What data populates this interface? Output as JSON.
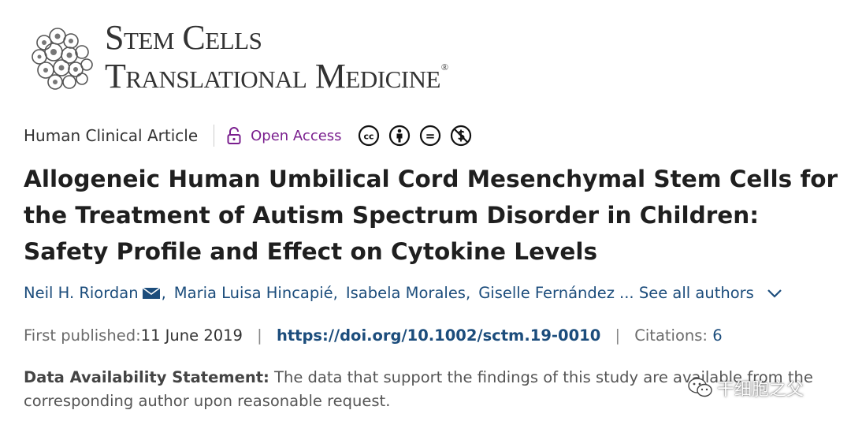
{
  "journal": {
    "name_line1": "Stem Cells",
    "name_line2": "Translational Medicine",
    "trademark": "®"
  },
  "article": {
    "type": "Human Clinical Article",
    "access": "Open Access",
    "license_icons": [
      "cc-icon",
      "attribution-icon",
      "no-derivatives-icon",
      "non-commercial-icon"
    ],
    "license_glyphs": {
      "cc": "cc",
      "nd": "="
    },
    "title": "Allogeneic Human Umbilical Cord Mesenchymal Stem Cells for the Treatment of Autism Spectrum Disorder in Children: Safety Profile and Effect on Cytokine Levels",
    "authors": {
      "author1": "Neil H. Riordan",
      "author2": "Maria Luisa Hincapié",
      "author3": "Isabela Morales",
      "author4": "Giselle Fernández",
      "separator": ",",
      "ellipsis": "...",
      "see_all": "See all authors"
    },
    "first_published_label": "First published:",
    "first_published_date": "11 June 2019",
    "pipe": "|",
    "doi": "https://doi.org/10.1002/sctm.19-0010",
    "citations_label": "Citations: ",
    "citations_value": "6",
    "data_availability_label": "Data Availability Statement:",
    "data_availability_text": " The data that support the findings of this study are available from the corresponding author upon reasonable request."
  },
  "watermark": {
    "text": "干细胞之父"
  },
  "colors": {
    "link": "#1c4d7c",
    "open_access": "#7a1f8e",
    "title": "#1f1f1f",
    "muted": "#6b6b6b"
  }
}
